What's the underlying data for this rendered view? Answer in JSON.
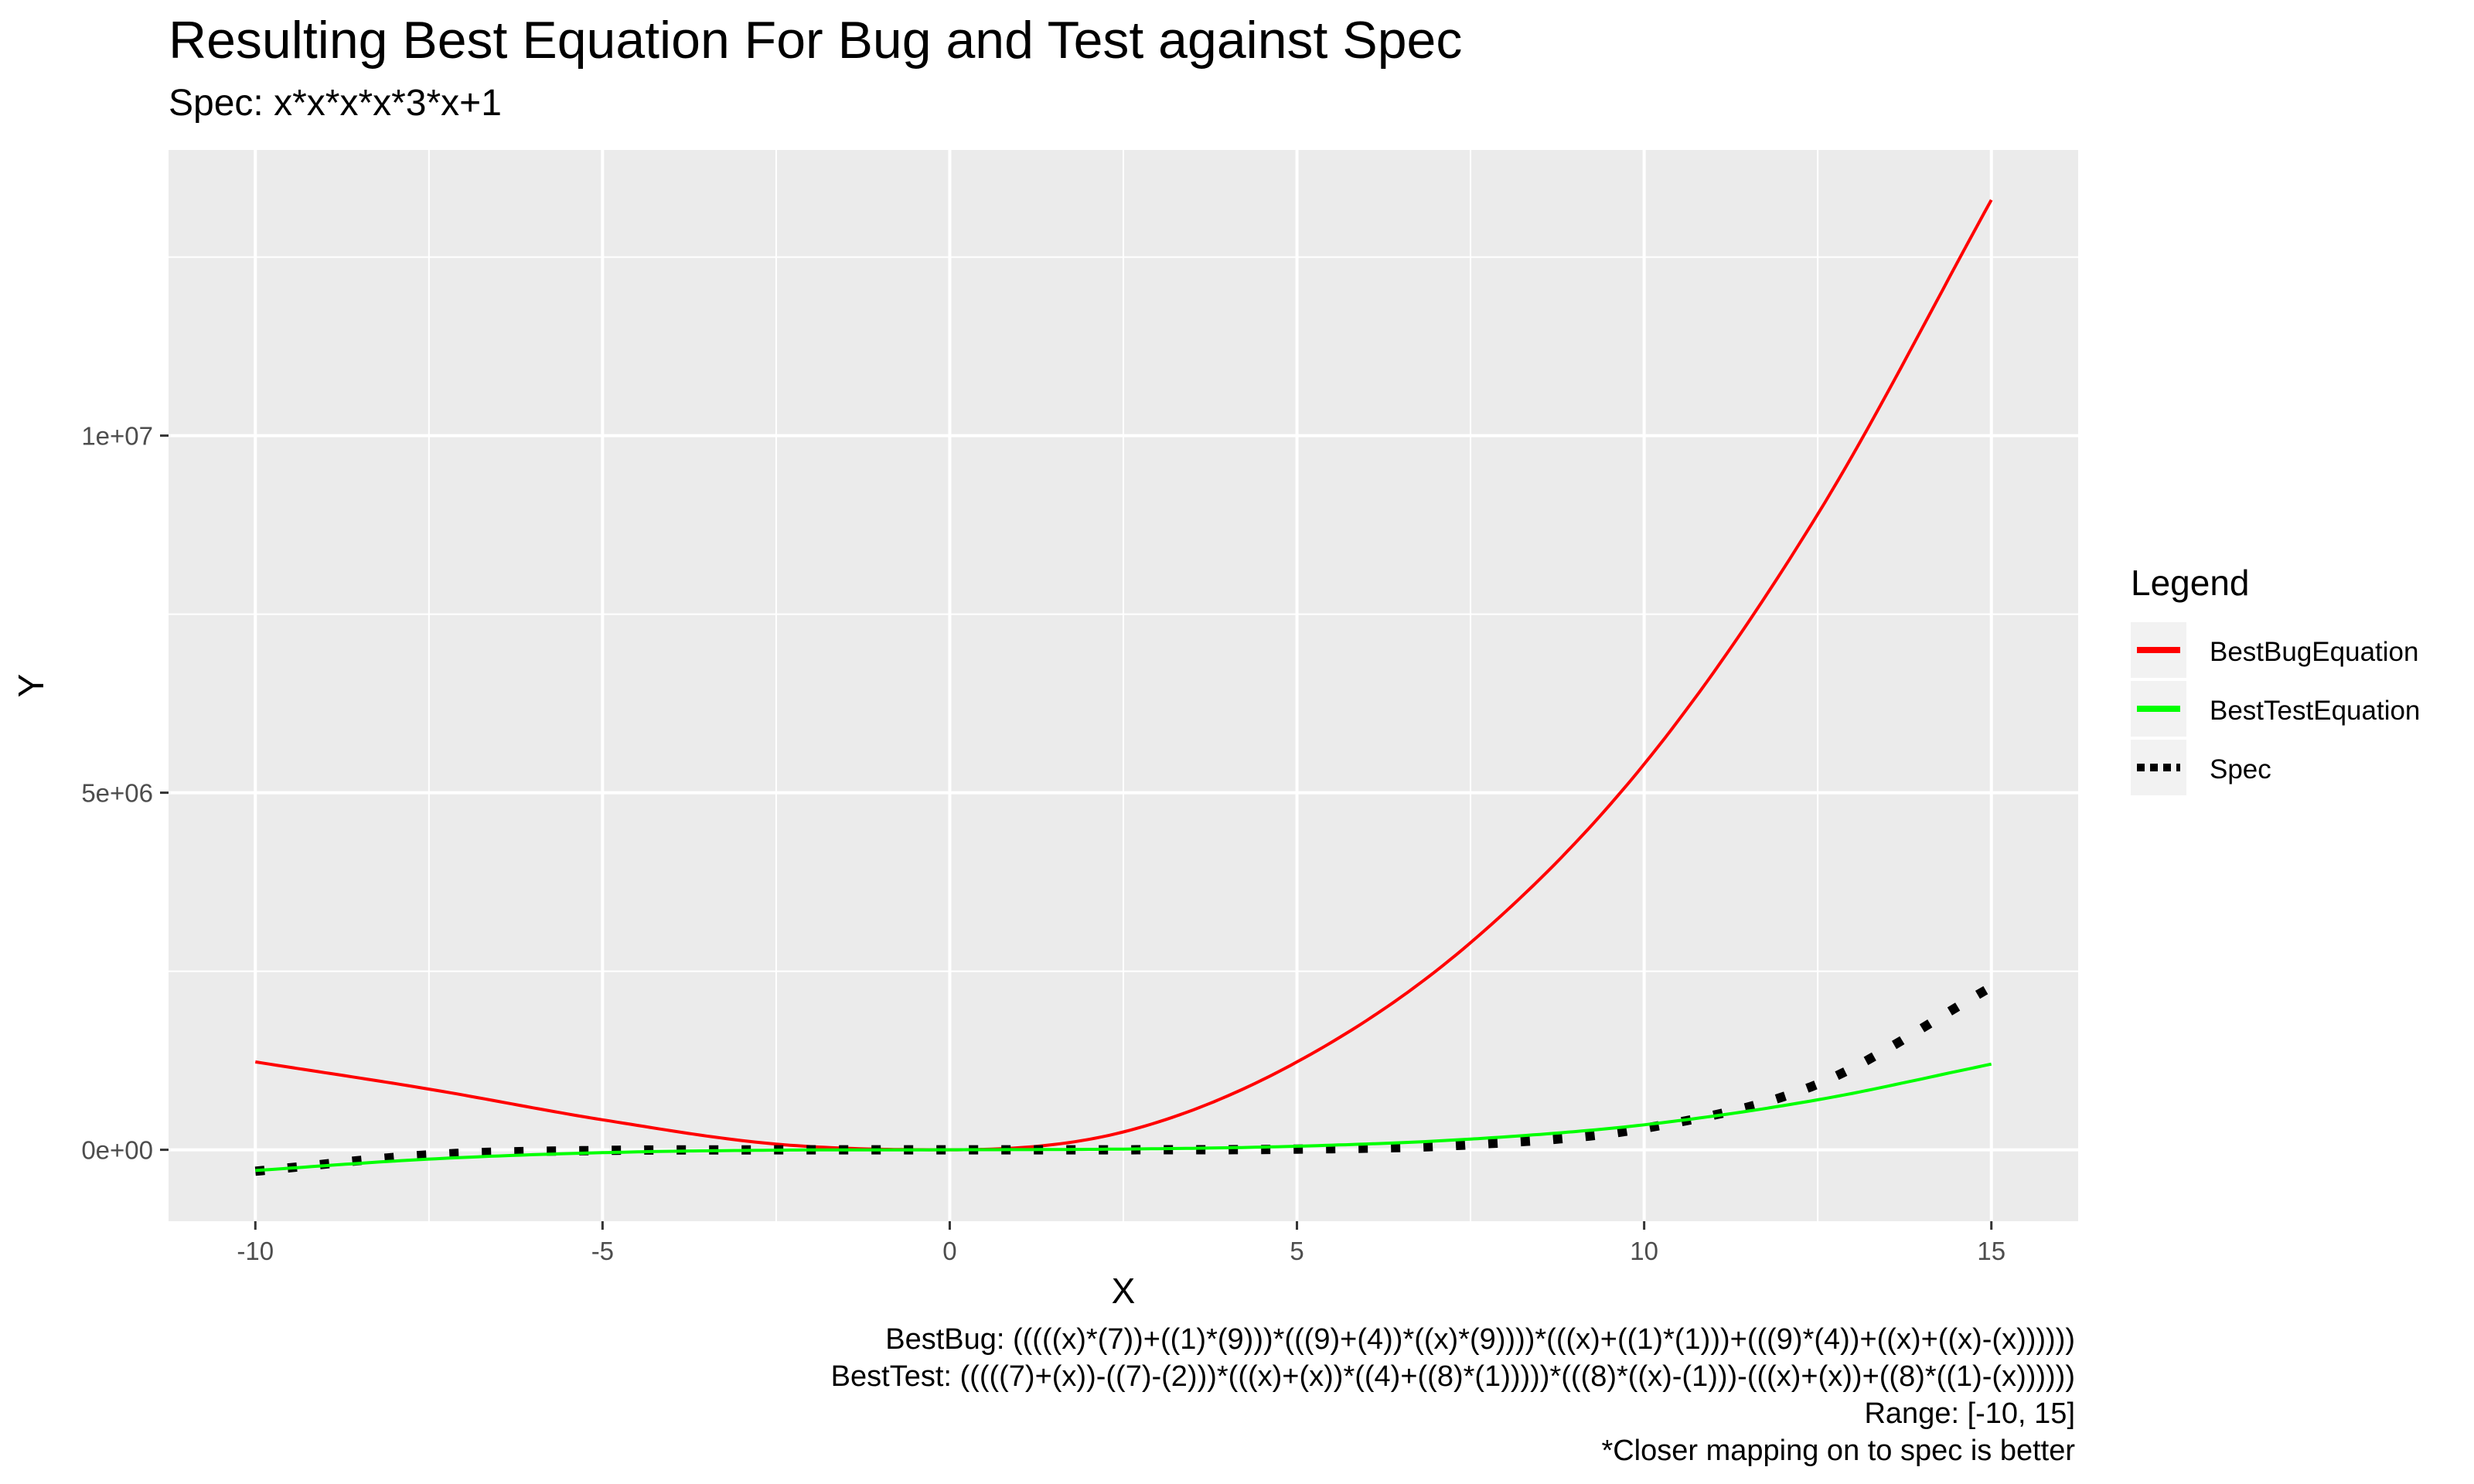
{
  "chart_data": {
    "type": "line",
    "title": "Resulting Best Equation For Bug and Test against Spec",
    "subtitle": "Spec: x*x*x*x*3*x+1",
    "xlabel": "X",
    "ylabel": "Y",
    "xlim": [
      -11.25,
      16.25
    ],
    "ylim": [
      -1000000,
      14000000
    ],
    "x_ticks": [
      -10,
      -5,
      0,
      5,
      10,
      15
    ],
    "x_tick_labels": [
      "-10",
      "-5",
      "0",
      "5",
      "10",
      "15"
    ],
    "y_ticks": [
      0,
      5000000,
      10000000
    ],
    "y_tick_labels": [
      "0e+00",
      "5e+06",
      "1e+07"
    ],
    "grid": true,
    "legend_title": "Legend",
    "legend_position": "right",
    "series": [
      {
        "name": "BestBugEquation",
        "color": "#ff0000",
        "style": "solid",
        "x": [
          -10,
          -7.5,
          -5,
          -2.5,
          0,
          2.5,
          5,
          7.5,
          10,
          12.5,
          15
        ],
        "y": [
          1230000,
          850000,
          420000,
          80000,
          0,
          250000,
          1230000,
          2900000,
          5400000,
          8900000,
          13300000
        ]
      },
      {
        "name": "BestTestEquation",
        "color": "#00ff00",
        "style": "solid",
        "x": [
          -10,
          -7.5,
          -5,
          -2.5,
          0,
          2.5,
          5,
          7.5,
          10,
          12.5,
          15
        ],
        "y": [
          -290000,
          -130000,
          -40000,
          -5000,
          0,
          10000,
          50000,
          150000,
          350000,
          700000,
          1200000
        ]
      },
      {
        "name": "Spec",
        "color": "#000000",
        "style": "dotted",
        "x": [
          -10,
          -7.5,
          -5,
          -2.5,
          0,
          2.5,
          5,
          7.5,
          10,
          12.5,
          15
        ],
        "y": [
          -300000,
          -71000,
          -9400,
          -290,
          1,
          290,
          9400,
          71000,
          300000,
          920000,
          2280000
        ]
      }
    ],
    "captions": [
      "BestBug: (((((x)*(7))+((1)*(9)))*(((9)+(4))*((x)*(9))))*(((x)+((1)*(1)))+(((9)*(4))+((x)+((x)-(x))))))",
      "BestTest: (((((7)+(x))-((7)-(2)))*(((x)+(x))*((4)+((8)*(1)))))*(((8)*((x)-(1)))-(((x)+(x))+((8)*((1)-(x))))))",
      "Range: [-10, 15]",
      "*Closer mapping on to spec is better"
    ]
  }
}
